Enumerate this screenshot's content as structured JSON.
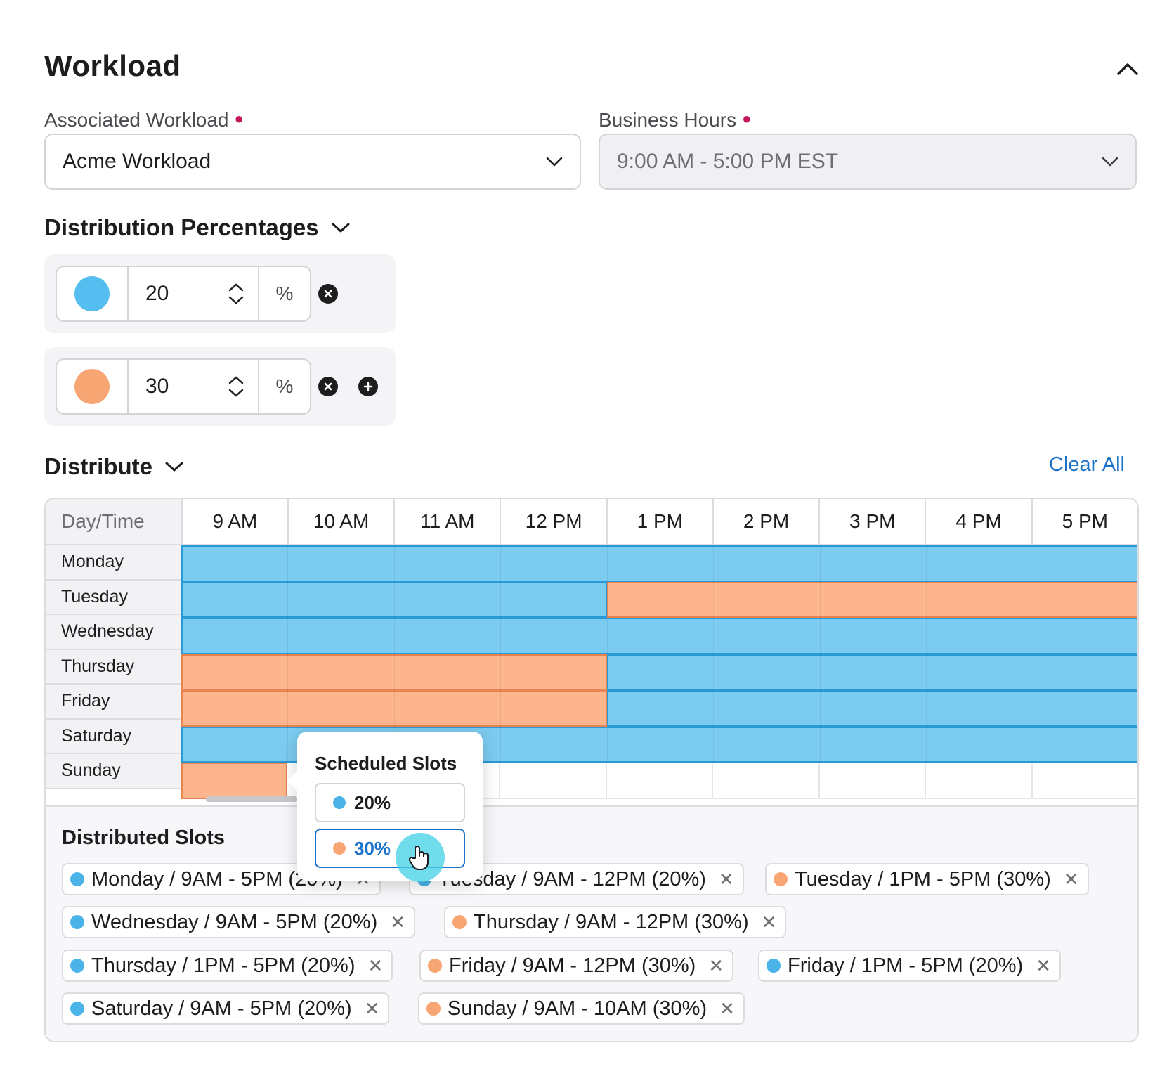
{
  "section": {
    "title": "Workload"
  },
  "associated_workload": {
    "label": "Associated Workload",
    "value": "Acme Workload"
  },
  "business_hours": {
    "label": "Business Hours",
    "value": "9:00 AM - 5:00 PM EST"
  },
  "distribution": {
    "title": "Distribution Percentages",
    "rows": [
      {
        "value": "20",
        "unit": "%",
        "color": "#55bdf0"
      },
      {
        "value": "30",
        "unit": "%",
        "color": "#f8a574"
      }
    ]
  },
  "distribute": {
    "title": "Distribute",
    "clear_all": "Clear All"
  },
  "grid": {
    "corner": "Day/Time",
    "times": [
      "9 AM",
      "10 AM",
      "11 AM",
      "12 PM",
      "1 PM",
      "2 PM",
      "3 PM",
      "4 PM",
      "5 PM"
    ],
    "days": [
      "Monday",
      "Tuesday",
      "Wednesday",
      "Thursday",
      "Friday",
      "Saturday",
      "Sunday"
    ],
    "colors": {
      "blue": "#7ccbf0",
      "blue_border": "#2a9ad6",
      "orange": "#fcb58d",
      "orange_border": "#e7844f"
    },
    "assignments": [
      {
        "day": "Monday",
        "segments": [
          {
            "start": 0,
            "end": 9,
            "group": "blue"
          }
        ]
      },
      {
        "day": "Tuesday",
        "segments": [
          {
            "start": 0,
            "end": 4,
            "group": "blue"
          },
          {
            "start": 4,
            "end": 9,
            "group": "orange"
          }
        ]
      },
      {
        "day": "Wednesday",
        "segments": [
          {
            "start": 0,
            "end": 9,
            "group": "blue"
          }
        ]
      },
      {
        "day": "Thursday",
        "segments": [
          {
            "start": 0,
            "end": 4,
            "group": "orange"
          },
          {
            "start": 4,
            "end": 9,
            "group": "blue"
          }
        ]
      },
      {
        "day": "Friday",
        "segments": [
          {
            "start": 0,
            "end": 4,
            "group": "orange"
          },
          {
            "start": 4,
            "end": 9,
            "group": "blue"
          }
        ]
      },
      {
        "day": "Saturday",
        "segments": [
          {
            "start": 0,
            "end": 9,
            "group": "blue"
          }
        ]
      },
      {
        "day": "Sunday",
        "segments": [
          {
            "start": 0,
            "end": 1,
            "group": "orange"
          }
        ]
      }
    ]
  },
  "distributed_slots": {
    "title": "Distributed Slots",
    "chips": [
      {
        "text": "Monday / 9AM - 5PM (20%)",
        "color": "#4ab3e8"
      },
      {
        "text": "Tuesday / 9AM - 12PM (20%)",
        "color": "#4ab3e8"
      },
      {
        "text": "Tuesday / 1PM - 5PM (30%)",
        "color": "#f8a574"
      },
      {
        "text": "Wednesday / 9AM - 5PM (20%)",
        "color": "#4ab3e8"
      },
      {
        "text": "Thursday / 9AM - 12PM (30%)",
        "color": "#f8a574"
      },
      {
        "text": "Thursday / 1PM - 5PM (20%)",
        "color": "#4ab3e8"
      },
      {
        "text": "Friday / 9AM - 12PM (30%)",
        "color": "#f8a574"
      },
      {
        "text": "Friday / 1PM - 5PM (20%)",
        "color": "#4ab3e8"
      },
      {
        "text": "Saturday / 9AM - 5PM (20%)",
        "color": "#4ab3e8"
      },
      {
        "text": "Sunday / 9AM - 10AM (30%)",
        "color": "#f8a574"
      }
    ]
  },
  "popover": {
    "title": "Scheduled Slots",
    "options": [
      {
        "label": "20%",
        "color": "#4ab3e8",
        "selected": false
      },
      {
        "label": "30%",
        "color": "#f8a574",
        "selected": true
      }
    ]
  },
  "icons": [
    "chevron-up-icon",
    "chevron-down-icon",
    "remove-circle-icon",
    "add-circle-icon",
    "close-icon",
    "hand-cursor-icon"
  ]
}
